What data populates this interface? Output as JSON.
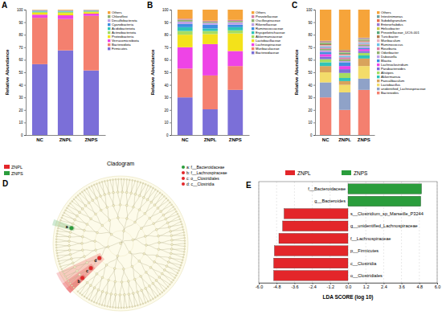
{
  "chart_data": [
    {
      "type": "bar",
      "panel": "A",
      "stacked": true,
      "ylabel": "Relative Abundance",
      "categories": [
        "NC",
        "ZNPL",
        "ZNPS"
      ],
      "ylim": [
        0,
        100
      ],
      "yticks": [
        0,
        10,
        20,
        30,
        40,
        50,
        60,
        70,
        80,
        90,
        100
      ],
      "series": [
        {
          "name": "Firmicutes",
          "color": "#7b6fd8",
          "values": [
            56.5,
            67.5,
            51.5
          ]
        },
        {
          "name": "Bacteroidota",
          "color": "#f4806f",
          "values": [
            37,
            25,
            43.5
          ]
        },
        {
          "name": "Verrucomicrobiota",
          "color": "#ee44e6",
          "values": [
            2.5,
            3,
            1.8
          ]
        },
        {
          "name": "Proteobacteria",
          "color": "#f3e21a",
          "values": [
            1.5,
            1.8,
            1.2
          ]
        },
        {
          "name": "Actinobacteriota",
          "color": "#a5dd62",
          "values": [
            0.8,
            1,
            0.6
          ]
        },
        {
          "name": "Acidobacteriota",
          "color": "#2fc4b8",
          "values": [
            0.3,
            0.3,
            0.3
          ]
        },
        {
          "name": "Cyanobacteria",
          "color": "#3e8ee0",
          "values": [
            0.5,
            0.4,
            0.3
          ]
        },
        {
          "name": "Desulfobacterota",
          "color": "#bca0e6",
          "values": [
            0.4,
            0.3,
            0.4
          ]
        },
        {
          "name": "Chloroflexi",
          "color": "#90b070",
          "values": [
            0.2,
            0.2,
            0.2
          ]
        },
        {
          "name": "Others",
          "color": "#f6a43a",
          "values": [
            0.3,
            0.5,
            0.2
          ]
        }
      ]
    },
    {
      "type": "bar",
      "panel": "B",
      "stacked": true,
      "ylabel": "Relative Abundance",
      "categories": [
        "NC",
        "ZNPL",
        "ZNPS"
      ],
      "ylim": [
        0,
        100
      ],
      "yticks": [
        0,
        10,
        20,
        30,
        40,
        50,
        60,
        70,
        80,
        90,
        100
      ],
      "series": [
        {
          "name": "Bacteroidaceae",
          "color": "#7b6fd8",
          "values": [
            30,
            20.5,
            36
          ]
        },
        {
          "name": "Muribaculaceae",
          "color": "#f4806f",
          "values": [
            23,
            27,
            19
          ]
        },
        {
          "name": "Lachnospiraceae",
          "color": "#ee44e6",
          "values": [
            17,
            25,
            12
          ]
        },
        {
          "name": "Lactobacillaceae",
          "color": "#f3e21a",
          "values": [
            10,
            8,
            14
          ]
        },
        {
          "name": "Akkermansiaceae",
          "color": "#a5dd62",
          "values": [
            3,
            2.5,
            2.5
          ]
        },
        {
          "name": "Erysipelotrichaceae",
          "color": "#2fc4b8",
          "values": [
            3,
            2,
            2.5
          ]
        },
        {
          "name": "Ruminococcaceae",
          "color": "#3e8ee0",
          "values": [
            2.5,
            3,
            2
          ]
        },
        {
          "name": "Rikenellaceae",
          "color": "#bca0e6",
          "values": [
            2,
            1.5,
            2
          ]
        },
        {
          "name": "Oscillospiraceae",
          "color": "#90b070",
          "values": [
            1.5,
            1,
            1
          ]
        },
        {
          "name": "Prevotellaceae",
          "color": "#d97fa6",
          "values": [
            0.8,
            0.7,
            0.8
          ]
        },
        {
          "name": "Others",
          "color": "#f6a43a",
          "values": [
            7.2,
            8.8,
            8.2
          ]
        }
      ]
    },
    {
      "type": "bar",
      "panel": "C",
      "stacked": true,
      "ylabel": "Relative Abundance",
      "categories": [
        "NC",
        "ZNPL",
        "ZNPS"
      ],
      "ylim": [
        0,
        100
      ],
      "yticks": [
        0,
        10,
        20,
        30,
        40,
        50,
        60,
        70,
        80,
        90,
        100
      ],
      "series": [
        {
          "name": "Bacteroides",
          "color": "#f4806f",
          "values": [
            30,
            20,
            36
          ]
        },
        {
          "name": "unidentified_Lachnospiraceae",
          "color": "#8fa2c8",
          "values": [
            12,
            14,
            9
          ]
        },
        {
          "name": "Lactobacillus",
          "color": "#f3dc6a",
          "values": [
            8,
            6,
            10
          ]
        },
        {
          "name": "Faecalibaculum",
          "color": "#d8a35c",
          "values": [
            5,
            3,
            6
          ]
        },
        {
          "name": "Akkermansia",
          "color": "#2fc4b8",
          "values": [
            3,
            2.5,
            2.5
          ]
        },
        {
          "name": "Alistipes",
          "color": "#a5dd62",
          "values": [
            2.5,
            4,
            2
          ]
        },
        {
          "name": "Parabacteroides",
          "color": "#7b6fd8",
          "values": [
            2,
            3,
            1.5
          ]
        },
        {
          "name": "Lachnoclostridium",
          "color": "#ee44e6",
          "values": [
            2,
            2.5,
            1.5
          ]
        },
        {
          "name": "Blautia",
          "color": "#3e8ee0",
          "values": [
            1.5,
            3,
            1
          ]
        },
        {
          "name": "Dubosiella",
          "color": "#bca0e6",
          "values": [
            1.5,
            1,
            1.5
          ]
        },
        {
          "name": "Odoribacter",
          "color": "#90b070",
          "values": [
            1.2,
            1.5,
            1
          ]
        },
        {
          "name": "Roseburia",
          "color": "#d97fa6",
          "values": [
            1,
            1.5,
            0.8
          ]
        },
        {
          "name": "Ruminococcus",
          "color": "#6cc3e8",
          "values": [
            1,
            1.2,
            0.8
          ]
        },
        {
          "name": "Muribaculum",
          "color": "#e8b0c0",
          "values": [
            1,
            1,
            1
          ]
        },
        {
          "name": "Turicibacter",
          "color": "#b57a50",
          "values": [
            0.8,
            0.6,
            0.8
          ]
        },
        {
          "name": "Prevotellaceae_UCG-001",
          "color": "#5aa87a",
          "values": [
            0.7,
            0.8,
            0.6
          ]
        },
        {
          "name": "Helicobacter",
          "color": "#c8c84a",
          "values": [
            0.6,
            0.5,
            0.5
          ]
        },
        {
          "name": "Enterorhabdus",
          "color": "#9a7ad0",
          "values": [
            0.5,
            0.6,
            0.4
          ]
        },
        {
          "name": "Subdoligranulum",
          "color": "#e87050",
          "values": [
            0.5,
            0.6,
            0.4
          ]
        },
        {
          "name": "Intestinimonas",
          "color": "#70a0a0",
          "values": [
            0.4,
            0.5,
            0.4
          ]
        },
        {
          "name": "Others",
          "color": "#f6a43a",
          "values": [
            24.8,
            32.2,
            22.3
          ]
        }
      ]
    },
    {
      "type": "cladogram",
      "panel": "D",
      "title": "Cladogram",
      "groups": [
        {
          "name": "ZNPL",
          "color": "#e3262a"
        },
        {
          "name": "ZNPS",
          "color": "#2a9d3c"
        }
      ],
      "nodes": [
        {
          "key": "a",
          "label": "a: f__Bacteroidaceae",
          "group": "ZNPS"
        },
        {
          "key": "b",
          "label": "b: f__Lachnospiraceae",
          "group": "ZNPL"
        },
        {
          "key": "c",
          "label": "c: o__Clostridiales",
          "group": "ZNPL"
        },
        {
          "key": "d",
          "label": "d: c__Clostridia",
          "group": "ZNPL"
        }
      ]
    },
    {
      "type": "bar",
      "panel": "E",
      "orientation": "horizontal",
      "grid": true,
      "xlabel": "LDA SCORE (log 10)",
      "categories": [
        "f__Bacteroidaceae",
        "g__Bacteroides",
        "s__Clostridium_sp_Marseille_P3244",
        "g__unidentified_Lachnospiraceae",
        "f__Lachnospiraceae",
        "p__Firmicutes",
        "c__Clostridia",
        "o__Clostridiales"
      ],
      "xlim": [
        -6,
        6
      ],
      "xticks": [
        {
          "value": -6,
          "label": "-6.0"
        },
        {
          "value": -4.8,
          "label": "-4.8"
        },
        {
          "value": -3.6,
          "label": "-3.6"
        },
        {
          "value": -2.4,
          "label": "-2.4"
        },
        {
          "value": -1.2,
          "label": "-1.2"
        },
        {
          "value": 0,
          "label": "0.0"
        },
        {
          "value": 1.2,
          "label": "1.2"
        },
        {
          "value": 2.4,
          "label": "2.4"
        },
        {
          "value": 3.6,
          "label": "3.6"
        },
        {
          "value": 4.8,
          "label": "4.8"
        },
        {
          "value": 6,
          "label": "6.0"
        }
      ],
      "series": [
        {
          "name": "ZNPL",
          "color": "#e3262a",
          "values": [
            null,
            null,
            -4.3,
            -4.4,
            -4.65,
            -4.95,
            -5.0,
            -5.0
          ]
        },
        {
          "name": "ZNPS",
          "color": "#2a9d3c",
          "values": [
            4.95,
            4.9,
            null,
            null,
            null,
            null,
            null,
            null
          ]
        }
      ]
    }
  ]
}
